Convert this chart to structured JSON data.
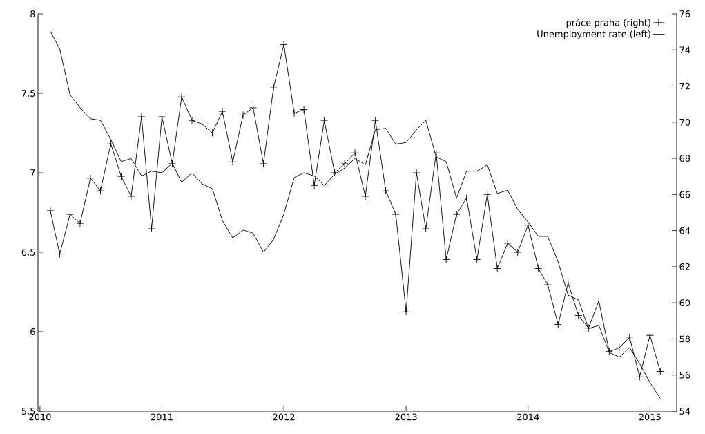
{
  "chart_data": {
    "type": "line",
    "x": [
      "2010-02",
      "2010-03",
      "2010-04",
      "2010-05",
      "2010-06",
      "2010-07",
      "2010-08",
      "2010-09",
      "2010-10",
      "2010-11",
      "2010-12",
      "2011-01",
      "2011-02",
      "2011-03",
      "2011-04",
      "2011-05",
      "2011-06",
      "2011-07",
      "2011-08",
      "2011-09",
      "2011-10",
      "2011-11",
      "2011-12",
      "2012-01",
      "2012-02",
      "2012-03",
      "2012-04",
      "2012-05",
      "2012-06",
      "2012-07",
      "2012-08",
      "2012-09",
      "2012-10",
      "2012-11",
      "2012-12",
      "2013-01",
      "2013-02",
      "2013-03",
      "2013-04",
      "2013-05",
      "2013-06",
      "2013-07",
      "2013-08",
      "2013-09",
      "2013-10",
      "2013-11",
      "2013-12",
      "2014-01",
      "2014-02",
      "2014-03",
      "2014-04",
      "2014-05",
      "2014-06",
      "2014-07",
      "2014-08",
      "2014-09",
      "2014-10",
      "2014-11",
      "2014-12",
      "2015-01",
      "2015-02"
    ],
    "series": [
      {
        "name": "práce praha (right)",
        "color": "#000000",
        "axis": "y2",
        "marker": "cross",
        "values": [
          65.1,
          62.7,
          64.9,
          64.4,
          66.9,
          66.2,
          68.8,
          67.0,
          65.9,
          70.3,
          64.1,
          70.3,
          67.7,
          71.4,
          70.1,
          69.9,
          69.4,
          70.6,
          67.8,
          70.4,
          70.8,
          67.7,
          71.9,
          74.3,
          70.5,
          70.7,
          66.5,
          70.1,
          67.2,
          67.7,
          68.3,
          65.9,
          70.1,
          66.2,
          64.9,
          59.5,
          67.2,
          64.1,
          68.3,
          62.4,
          64.9,
          65.8,
          62.4,
          66.0,
          61.9,
          63.3,
          62.8,
          64.3,
          61.9,
          61.0,
          58.8,
          61.1,
          59.3,
          58.6,
          60.1,
          57.3,
          57.5,
          58.1,
          55.9,
          58.2,
          56.2
        ]
      },
      {
        "name": "Unemployment rate (left)",
        "color": "#000000",
        "axis": "y",
        "marker": "none",
        "values": [
          7.89,
          7.78,
          7.49,
          7.41,
          7.34,
          7.33,
          7.21,
          7.07,
          7.09,
          6.98,
          7.01,
          7.0,
          7.06,
          6.94,
          7.0,
          6.93,
          6.9,
          6.7,
          6.59,
          6.64,
          6.62,
          6.5,
          6.58,
          6.74,
          6.97,
          7.0,
          6.98,
          6.92,
          6.99,
          7.03,
          7.09,
          7.05,
          7.27,
          7.28,
          7.18,
          7.19,
          7.27,
          7.33,
          7.1,
          7.07,
          6.84,
          7.01,
          7.01,
          7.05,
          6.87,
          6.89,
          6.77,
          6.69,
          6.6,
          6.6,
          6.44,
          6.23,
          6.2,
          6.02,
          6.04,
          5.87,
          5.84,
          5.9,
          5.8,
          5.68,
          5.58
        ]
      }
    ],
    "xlim": [
      "2009-12-26",
      "2015-03-22"
    ],
    "xticks": [
      "2010",
      "2011",
      "2012",
      "2013",
      "2014",
      "2015"
    ],
    "ylim": [
      5.5,
      8
    ],
    "yticks": [
      5.5,
      6,
      6.5,
      7,
      7.5,
      8
    ],
    "y2lim": [
      54,
      76
    ],
    "y2ticks": [
      54,
      56,
      58,
      60,
      62,
      64,
      66,
      68,
      70,
      72,
      74,
      76
    ],
    "legend": "top right"
  }
}
